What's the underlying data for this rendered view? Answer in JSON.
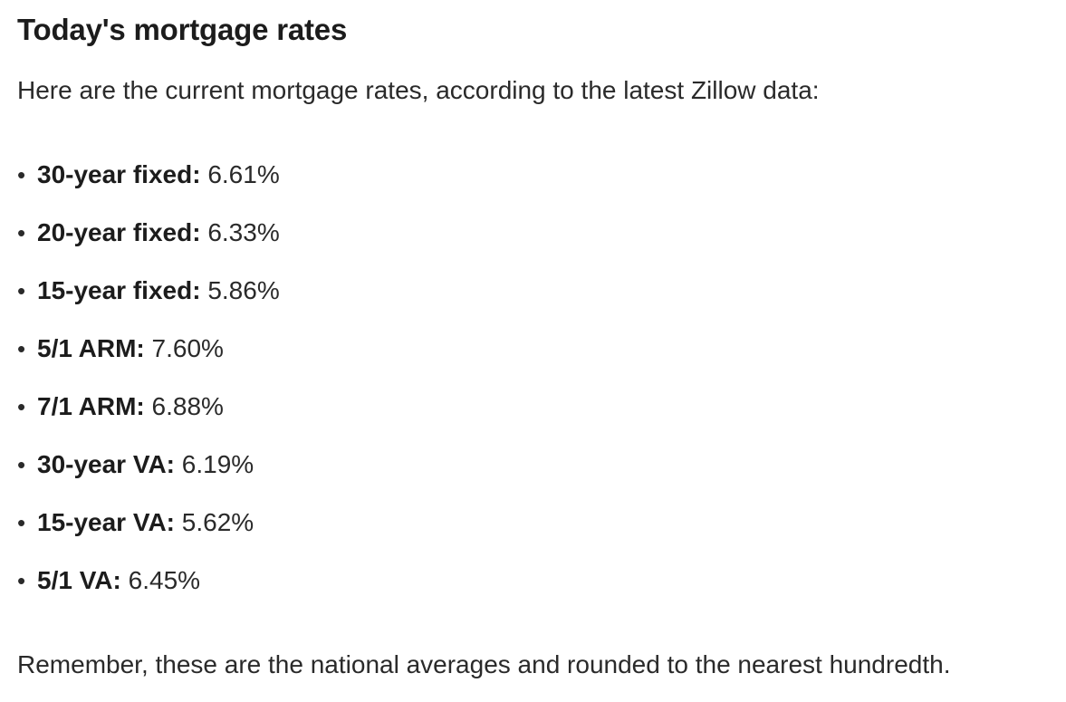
{
  "article": {
    "title": "Today's mortgage rates",
    "intro": "Here are the current mortgage rates, according to the latest Zillow data:",
    "rates": [
      {
        "label": "30-year fixed:",
        "value": "6.61%"
      },
      {
        "label": "20-year fixed:",
        "value": "6.33%"
      },
      {
        "label": "15-year fixed:",
        "value": "5.86%"
      },
      {
        "label": "5/1 ARM:",
        "value": "7.60%"
      },
      {
        "label": "7/1 ARM:",
        "value": "6.88%"
      },
      {
        "label": "30-year VA:",
        "value": "6.19%"
      },
      {
        "label": "15-year VA:",
        "value": "5.62%"
      },
      {
        "label": "5/1 VA:",
        "value": "6.45%"
      }
    ],
    "note": "Remember, these are the national averages and rounded to the nearest hundredth."
  }
}
